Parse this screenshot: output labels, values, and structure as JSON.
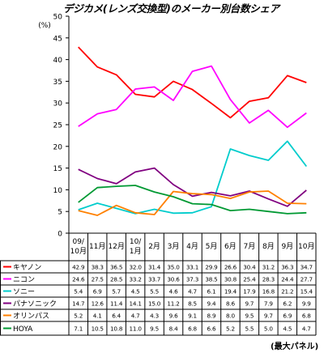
{
  "title": "デジカメ(レンズ交換型)のメーカー別台数シェア",
  "note": "(最大パネル)",
  "chart_data": {
    "type": "line",
    "title": "デジカメ(レンズ交換型)のメーカー別台数シェア",
    "ylabel": "(%)",
    "ylim": [
      0,
      50
    ],
    "yticks": [
      0,
      5,
      10,
      15,
      20,
      25,
      30,
      35,
      40,
      45,
      50
    ],
    "grid": false,
    "legend": "table-left",
    "categories": [
      "09/10月",
      "11月",
      "12月",
      "10/1月",
      "2月",
      "3月",
      "4月",
      "5月",
      "6月",
      "7月",
      "8月",
      "9月",
      "10月"
    ],
    "category_lines": [
      [
        "09/",
        "10月"
      ],
      [
        "11月"
      ],
      [
        "12月"
      ],
      [
        "10/",
        "1月"
      ],
      [
        "2月"
      ],
      [
        "3月"
      ],
      [
        "4月"
      ],
      [
        "5月"
      ],
      [
        "6月"
      ],
      [
        "7月"
      ],
      [
        "8月"
      ],
      [
        "9月"
      ],
      [
        "10月"
      ]
    ],
    "series": [
      {
        "name": "キヤノン",
        "color": "#ff0000",
        "values": [
          42.9,
          38.3,
          36.5,
          32.0,
          31.4,
          35.0,
          33.1,
          29.9,
          26.6,
          30.4,
          31.2,
          36.3,
          34.7
        ]
      },
      {
        "name": "ニコン",
        "color": "#ff00ff",
        "values": [
          24.6,
          27.5,
          28.5,
          33.2,
          33.7,
          30.6,
          37.3,
          38.5,
          30.8,
          25.4,
          28.3,
          24.4,
          27.7
        ]
      },
      {
        "name": "ソニー",
        "color": "#00cccc",
        "values": [
          5.4,
          6.9,
          5.7,
          4.5,
          5.5,
          4.6,
          4.7,
          6.1,
          19.4,
          17.9,
          16.8,
          21.2,
          15.4
        ]
      },
      {
        "name": "パナソニック",
        "color": "#800080",
        "values": [
          14.7,
          12.6,
          11.4,
          14.1,
          15.0,
          11.2,
          8.5,
          9.4,
          8.6,
          9.7,
          7.9,
          6.2,
          9.9
        ]
      },
      {
        "name": "オリンパス",
        "color": "#ff8000",
        "values": [
          5.2,
          4.1,
          6.4,
          4.7,
          4.3,
          9.6,
          9.1,
          8.9,
          8.0,
          9.5,
          9.7,
          6.9,
          6.8
        ]
      },
      {
        "name": "HOYA",
        "color": "#009933",
        "values": [
          7.1,
          10.5,
          10.8,
          11.0,
          9.5,
          8.4,
          6.8,
          6.6,
          5.2,
          5.5,
          5.0,
          4.5,
          4.7
        ]
      }
    ]
  }
}
